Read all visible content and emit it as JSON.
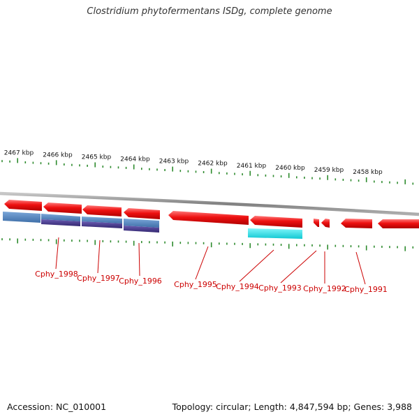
{
  "title": "Clostridium phytofermentans ISDg, complete genome",
  "footer": {
    "accession": "Accession: NC_010001",
    "summary": "Topology: circular; Length: 4,847,594 bp; Genes: 3,988"
  },
  "colors": {
    "gene_forward": "#ee1111",
    "backbone": "#8c8c8c",
    "feature_light_blue": "#5b8cc6",
    "feature_dark_blue": "#4a3c92",
    "feature_cyan": "#22e5ee",
    "tick": "#2e8b2e",
    "label": "#cc0000"
  },
  "scale_labels": [
    {
      "kbp": 2467,
      "text": "2467 kbp"
    },
    {
      "kbp": 2466,
      "text": "2466 kbp"
    },
    {
      "kbp": 2465,
      "text": "2465 kbp"
    },
    {
      "kbp": 2464,
      "text": "2464 kbp"
    },
    {
      "kbp": 2463,
      "text": "2463 kbp"
    },
    {
      "kbp": 2462,
      "text": "2462 kbp"
    },
    {
      "kbp": 2461,
      "text": "2461 kbp"
    },
    {
      "kbp": 2460,
      "text": "2460 kbp"
    },
    {
      "kbp": 2459,
      "text": "2459 kbp"
    },
    {
      "kbp": 2458,
      "text": "2458 kbp"
    }
  ],
  "genes": [
    {
      "name": "Cphy_1998"
    },
    {
      "name": "Cphy_1997"
    },
    {
      "name": "Cphy_1996"
    },
    {
      "name": "Cphy_1995"
    },
    {
      "name": "Cphy_1994"
    },
    {
      "name": "Cphy_1993"
    },
    {
      "name": "Cphy_1992"
    },
    {
      "name": "Cphy_1991"
    }
  ]
}
